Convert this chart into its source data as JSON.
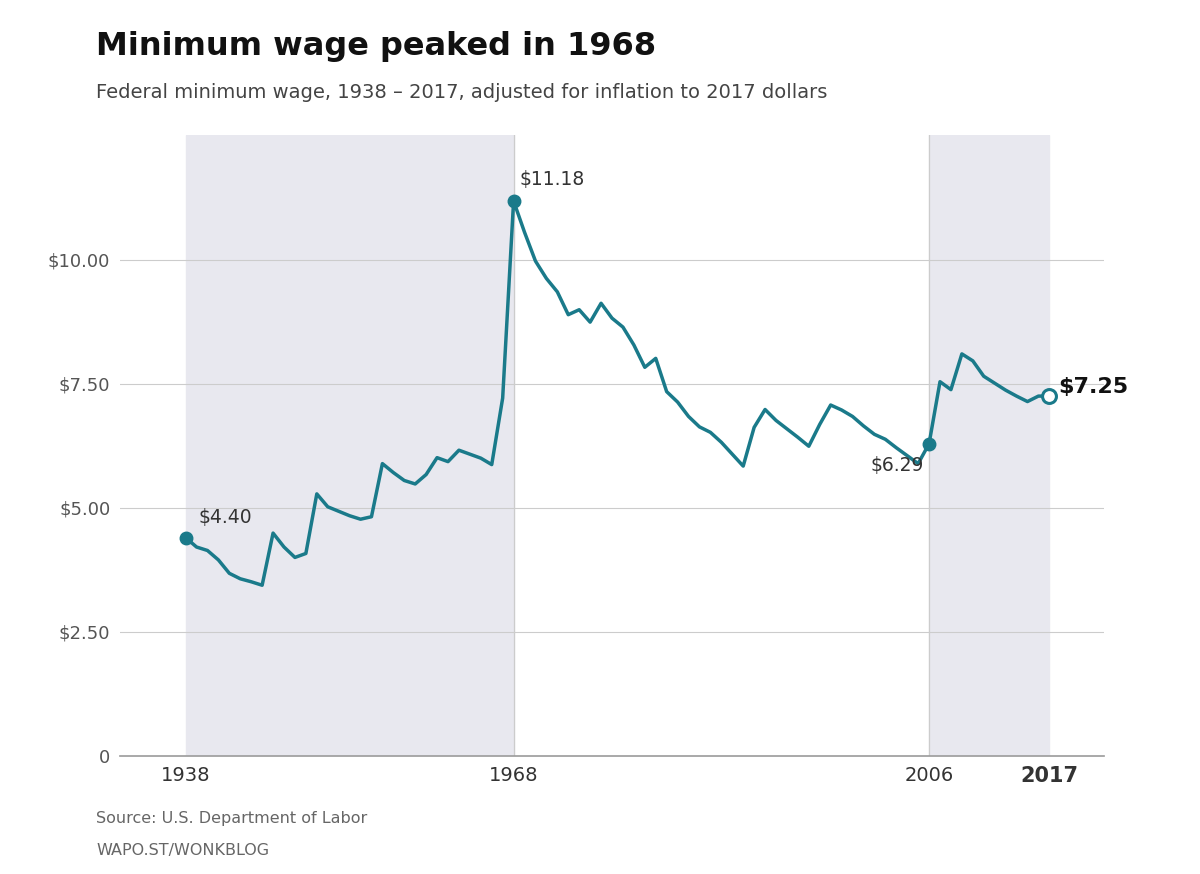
{
  "title": "Minimum wage peaked in 1968",
  "subtitle": "Federal minimum wage, 1938 – 2017, adjusted for inflation to 2017 dollars",
  "source": "Source: U.S. Department of Labor",
  "footer": "WAPO.ST/WONKBLOG",
  "line_color": "#1a7a8a",
  "fill_color": "#e8e8ef",
  "background_color": "#ffffff",
  "years": [
    1938,
    1939,
    1940,
    1941,
    1942,
    1943,
    1944,
    1945,
    1946,
    1947,
    1948,
    1949,
    1950,
    1951,
    1952,
    1953,
    1954,
    1955,
    1956,
    1957,
    1958,
    1959,
    1960,
    1961,
    1962,
    1963,
    1964,
    1965,
    1966,
    1967,
    1968,
    1969,
    1970,
    1971,
    1972,
    1973,
    1974,
    1975,
    1976,
    1977,
    1978,
    1979,
    1980,
    1981,
    1982,
    1983,
    1984,
    1985,
    1986,
    1987,
    1988,
    1989,
    1990,
    1991,
    1992,
    1993,
    1994,
    1995,
    1996,
    1997,
    1998,
    1999,
    2000,
    2001,
    2002,
    2003,
    2004,
    2005,
    2006,
    2007,
    2008,
    2009,
    2010,
    2011,
    2012,
    2013,
    2014,
    2015,
    2016,
    2017
  ],
  "values": [
    4.4,
    4.21,
    4.14,
    3.95,
    3.68,
    3.57,
    3.51,
    3.44,
    4.49,
    4.21,
    4.0,
    4.08,
    5.28,
    5.02,
    4.93,
    4.84,
    4.77,
    4.82,
    5.89,
    5.71,
    5.55,
    5.48,
    5.67,
    6.01,
    5.93,
    6.16,
    6.08,
    6.0,
    5.87,
    7.21,
    11.18,
    10.55,
    9.97,
    9.62,
    9.35,
    8.89,
    8.99,
    8.74,
    9.12,
    8.82,
    8.64,
    8.28,
    7.83,
    8.01,
    7.34,
    7.13,
    6.84,
    6.63,
    6.52,
    6.32,
    6.08,
    5.84,
    6.62,
    6.98,
    6.76,
    6.59,
    6.42,
    6.24,
    6.68,
    7.07,
    6.97,
    6.84,
    6.65,
    6.48,
    6.38,
    6.21,
    6.05,
    5.89,
    6.29,
    7.54,
    7.38,
    8.1,
    7.96,
    7.65,
    7.51,
    7.37,
    7.25,
    7.14,
    7.25,
    7.25
  ],
  "shaded_regions": [
    {
      "x_start": 1938,
      "x_end": 1968
    },
    {
      "x_start": 2006,
      "x_end": 2017
    }
  ],
  "vline_years": [
    1968,
    2006
  ],
  "yticks": [
    0,
    2.5,
    5.0,
    7.5,
    10.0
  ],
  "ytick_labels": [
    "0",
    "$2.50",
    "$5.00",
    "$7.50",
    "$10.00"
  ],
  "xtick_years": [
    1938,
    1968,
    2006,
    2017
  ],
  "ylim": [
    0,
    12.5
  ],
  "xlim": [
    1932,
    2022
  ]
}
